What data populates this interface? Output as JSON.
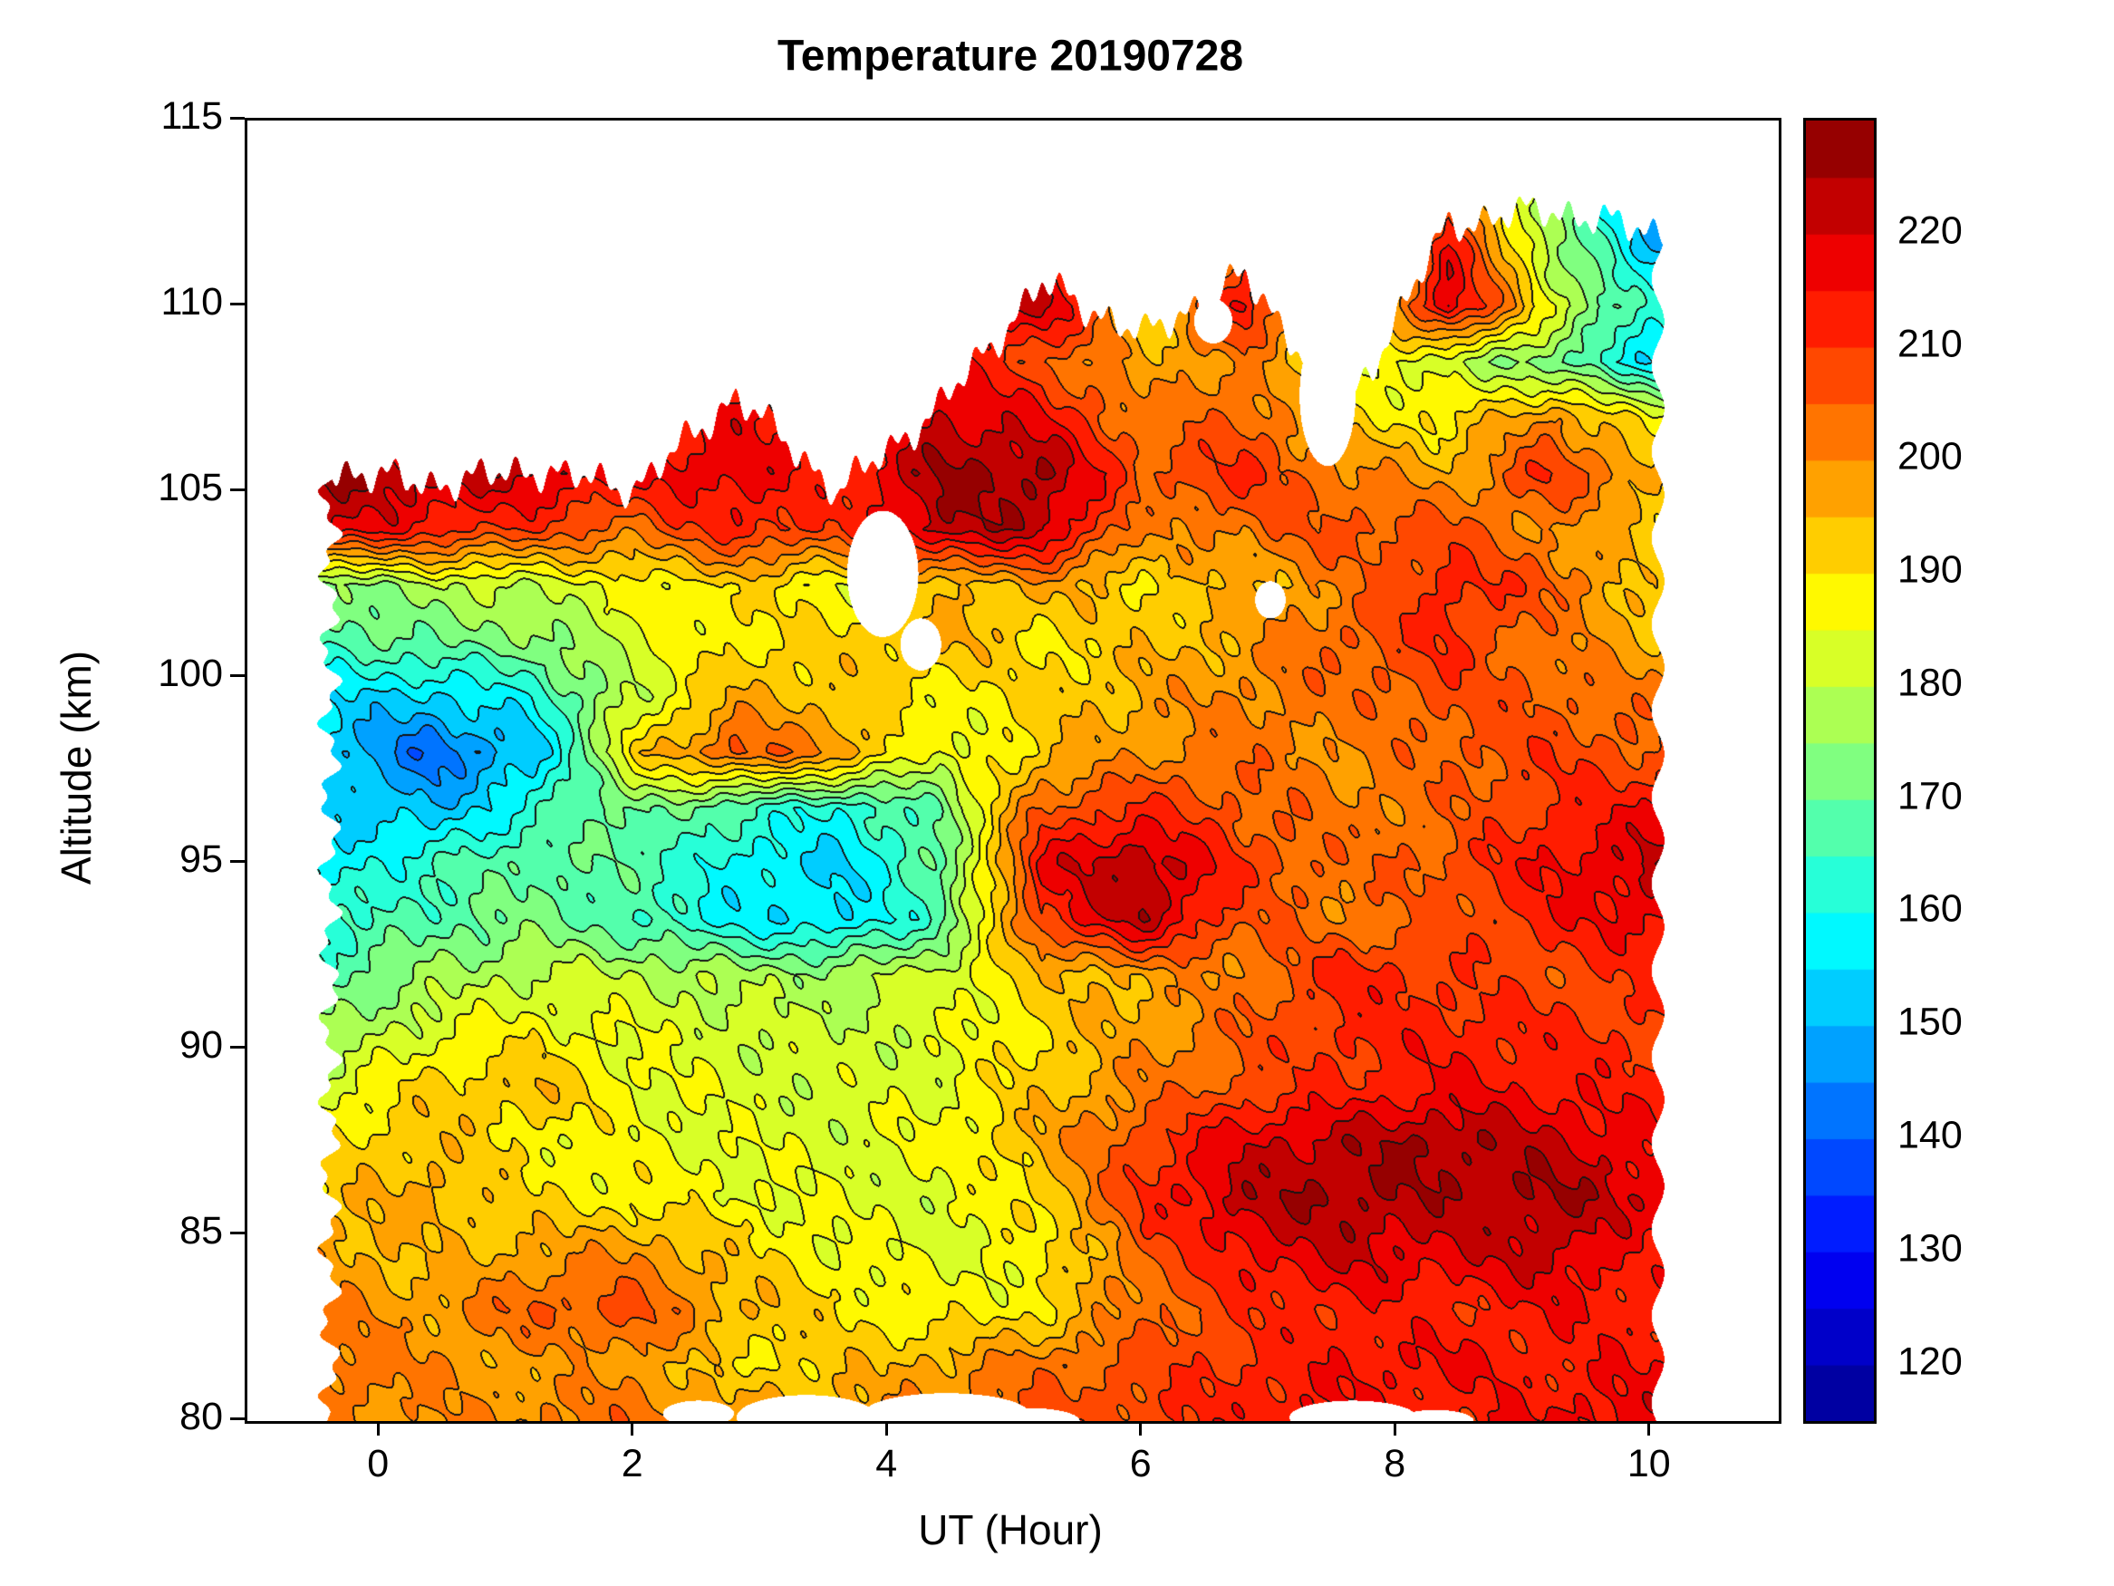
{
  "figure": {
    "title": "Temperature 20190728",
    "xlabel": "UT (Hour)",
    "ylabel": "Altitude (km)"
  },
  "colors": {
    "background": "#ffffff",
    "axis": "#000000",
    "contour_line": "#141414",
    "colormap": "jet"
  },
  "chart_data": {
    "type": "heatmap",
    "title": "Temperature 20190728",
    "xlabel": "UT (Hour)",
    "ylabel": "Altitude (km)",
    "xlim": [
      -1.05,
      11.0
    ],
    "ylim": [
      80,
      115
    ],
    "x_ticks": [
      0,
      2,
      4,
      6,
      8,
      10
    ],
    "y_ticks": [
      80,
      85,
      90,
      95,
      100,
      105,
      110,
      115
    ],
    "grid": false,
    "colorbar": {
      "min": 115,
      "max": 230,
      "band_step": 5,
      "tick_values": [
        120,
        130,
        140,
        150,
        160,
        170,
        180,
        190,
        200,
        210,
        220
      ],
      "colormap": "jet"
    },
    "x": [
      -0.4,
      0.4,
      1.2,
      2.0,
      2.8,
      3.6,
      4.4,
      5.2,
      6.0,
      6.8,
      7.6,
      8.4,
      9.2,
      10.0
    ],
    "altitude": [
      80,
      81.5,
      83,
      84.5,
      86,
      87.5,
      89,
      90.5,
      92,
      93.5,
      95,
      96.5,
      98,
      99.5,
      101,
      102.5,
      104,
      105.5,
      107,
      108.5,
      110,
      111.5,
      113
    ],
    "temperature": [
      [
        200,
        199,
        201,
        203,
        199,
        197,
        203,
        206,
        209,
        213,
        216,
        211,
        216,
        218
      ],
      [
        204,
        200,
        196,
        199,
        189,
        193,
        197,
        203,
        207,
        211,
        214,
        216,
        212,
        215
      ],
      [
        200,
        197,
        206,
        207,
        196,
        190,
        187,
        189,
        203,
        209,
        213,
        211,
        214,
        213
      ],
      [
        198,
        193,
        197,
        200,
        192,
        186,
        184,
        187,
        205,
        216,
        221,
        218,
        222,
        212
      ],
      [
        193,
        197,
        190,
        188,
        186,
        184,
        183,
        191,
        211,
        223,
        226,
        223,
        226,
        219
      ],
      [
        190,
        194,
        188,
        186,
        184,
        183,
        186,
        196,
        209,
        219,
        223,
        226,
        221,
        216
      ],
      [
        183,
        192,
        195,
        186,
        183,
        182,
        184,
        193,
        201,
        207,
        211,
        215,
        214,
        212
      ],
      [
        175,
        184,
        188,
        184,
        182,
        181,
        183,
        191,
        197,
        205,
        211,
        213,
        211,
        209
      ],
      [
        169,
        176,
        181,
        180,
        178,
        177,
        183,
        193,
        197,
        201,
        213,
        209,
        207,
        211
      ],
      [
        162,
        168,
        172,
        166,
        157,
        155,
        166,
        211,
        223,
        206,
        201,
        206,
        213,
        217
      ],
      [
        158,
        164,
        170,
        168,
        158,
        154,
        169,
        216,
        226,
        209,
        203,
        207,
        215,
        222
      ],
      [
        154,
        150,
        162,
        173,
        166,
        160,
        171,
        206,
        211,
        205,
        201,
        203,
        211,
        215
      ],
      [
        152,
        141,
        151,
        191,
        207,
        200,
        183,
        193,
        199,
        203,
        199,
        205,
        209,
        206
      ],
      [
        156,
        153,
        161,
        181,
        196,
        193,
        187,
        191,
        197,
        201,
        203,
        207,
        205,
        201
      ],
      [
        166,
        171,
        173,
        183,
        189,
        191,
        197,
        189,
        193,
        197,
        206,
        211,
        201,
        196
      ],
      [
        173,
        179,
        181,
        187,
        191,
        186,
        193,
        197,
        191,
        195,
        201,
        213,
        206,
        191
      ],
      [
        219,
        213,
        209,
        203,
        213,
        209,
        223,
        223,
        199,
        203,
        207,
        207,
        199,
        193
      ],
      [
        226,
        223,
        221,
        216,
        219,
        211,
        226,
        226,
        206,
        211,
        201,
        196,
        211,
        196
      ],
      [
        221,
        219,
        216,
        213,
        216,
        209,
        221,
        216,
        201,
        206,
        191,
        189,
        201,
        186
      ],
      [
        211,
        206,
        201,
        206,
        211,
        206,
        216,
        206,
        196,
        201,
        186,
        181,
        171,
        156
      ],
      [
        206,
        201,
        199,
        201,
        206,
        211,
        211,
        223,
        191,
        216,
        181,
        221,
        186,
        161
      ],
      [
        201,
        199,
        196,
        199,
        201,
        206,
        209,
        216,
        186,
        206,
        176,
        216,
        179,
        151
      ],
      [
        196,
        193,
        191,
        193,
        196,
        201,
        203,
        211,
        181,
        201,
        171,
        206,
        173,
        146
      ]
    ],
    "top_boundary": [
      105.6,
      105.2,
      105.6,
      105.1,
      107.6,
      105.0,
      107.3,
      110.6,
      109.2,
      110.8,
      107.2,
      112.2,
      112.6,
      112.0
    ],
    "holes": [
      {
        "x": 3.95,
        "alt": 102.8,
        "rx": 0.28,
        "ry": 1.7
      },
      {
        "x": 4.25,
        "alt": 100.9,
        "rx": 0.16,
        "ry": 0.7
      },
      {
        "x": 7.45,
        "alt": 107.6,
        "rx": 0.22,
        "ry": 1.9
      },
      {
        "x": 7.0,
        "alt": 102.1,
        "rx": 0.12,
        "ry": 0.5
      },
      {
        "x": 6.55,
        "alt": 109.6,
        "rx": 0.15,
        "ry": 0.6
      },
      {
        "x": 3.35,
        "alt": 80.1,
        "rx": 0.55,
        "ry": 0.6
      },
      {
        "x": 4.45,
        "alt": 80.2,
        "rx": 0.65,
        "ry": 0.55
      },
      {
        "x": 5.1,
        "alt": 80.0,
        "rx": 0.4,
        "ry": 0.35
      },
      {
        "x": 7.65,
        "alt": 80.1,
        "rx": 0.5,
        "ry": 0.45
      },
      {
        "x": 8.3,
        "alt": 80.0,
        "rx": 0.3,
        "ry": 0.3
      },
      {
        "x": 2.5,
        "alt": 80.2,
        "rx": 0.28,
        "ry": 0.35
      }
    ]
  }
}
